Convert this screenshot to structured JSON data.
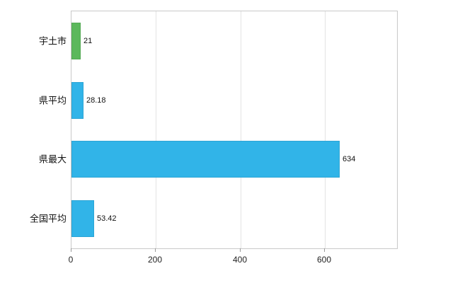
{
  "chart_data": {
    "type": "bar",
    "orientation": "horizontal",
    "categories": [
      "宇土市",
      "県平均",
      "県最大",
      "全国平均"
    ],
    "values": [
      21,
      28.18,
      634,
      53.42
    ],
    "value_labels": [
      "21",
      "28.18",
      "634",
      "53.42"
    ],
    "bar_colors": [
      "#5cb85c",
      "#31b4e8",
      "#31b4e8",
      "#31b4e8"
    ],
    "title": "",
    "xlabel": "",
    "ylabel": "",
    "xlim": [
      0,
      770
    ],
    "ticks": [
      0,
      200,
      400,
      600
    ],
    "tick_labels": [
      "0",
      "200",
      "400",
      "600"
    ],
    "grid": true,
    "legend": "none",
    "colors": {
      "grid": "#e3e3e3",
      "border": "#c9c9c9",
      "tick": "#999999",
      "text": "#111111"
    }
  }
}
